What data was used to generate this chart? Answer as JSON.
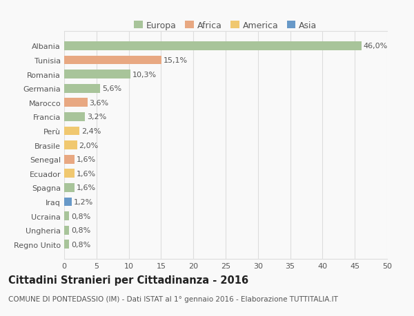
{
  "countries": [
    "Albania",
    "Tunisia",
    "Romania",
    "Germania",
    "Marocco",
    "Francia",
    "Perù",
    "Brasile",
    "Senegal",
    "Ecuador",
    "Spagna",
    "Iraq",
    "Ucraina",
    "Ungheria",
    "Regno Unito"
  ],
  "values": [
    46.0,
    15.1,
    10.3,
    5.6,
    3.6,
    3.2,
    2.4,
    2.0,
    1.6,
    1.6,
    1.6,
    1.2,
    0.8,
    0.8,
    0.8
  ],
  "labels": [
    "46,0%",
    "15,1%",
    "10,3%",
    "5,6%",
    "3,6%",
    "3,2%",
    "2,4%",
    "2,0%",
    "1,6%",
    "1,6%",
    "1,6%",
    "1,2%",
    "0,8%",
    "0,8%",
    "0,8%"
  ],
  "regions": [
    "Europa",
    "Africa",
    "Europa",
    "Europa",
    "Africa",
    "Europa",
    "America",
    "America",
    "Africa",
    "America",
    "Europa",
    "Asia",
    "Europa",
    "Europa",
    "Europa"
  ],
  "region_colors": {
    "Europa": "#a8c49a",
    "Africa": "#e8a882",
    "America": "#f0c870",
    "Asia": "#6899c8"
  },
  "legend_labels": [
    "Europa",
    "Africa",
    "America",
    "Asia"
  ],
  "legend_colors": [
    "#a8c49a",
    "#e8a882",
    "#f0c870",
    "#6899c8"
  ],
  "title": "Cittadini Stranieri per Cittadinanza - 2016",
  "subtitle": "COMUNE DI PONTEDASSIO (IM) - Dati ISTAT al 1° gennaio 2016 - Elaborazione TUTTITALIA.IT",
  "xlim": [
    0,
    50
  ],
  "xticks": [
    0,
    5,
    10,
    15,
    20,
    25,
    30,
    35,
    40,
    45,
    50
  ],
  "background_color": "#f9f9f9",
  "grid_color": "#dddddd",
  "bar_height": 0.62,
  "label_fontsize": 8,
  "title_fontsize": 10.5,
  "subtitle_fontsize": 7.5,
  "tick_fontsize": 8,
  "legend_fontsize": 9
}
